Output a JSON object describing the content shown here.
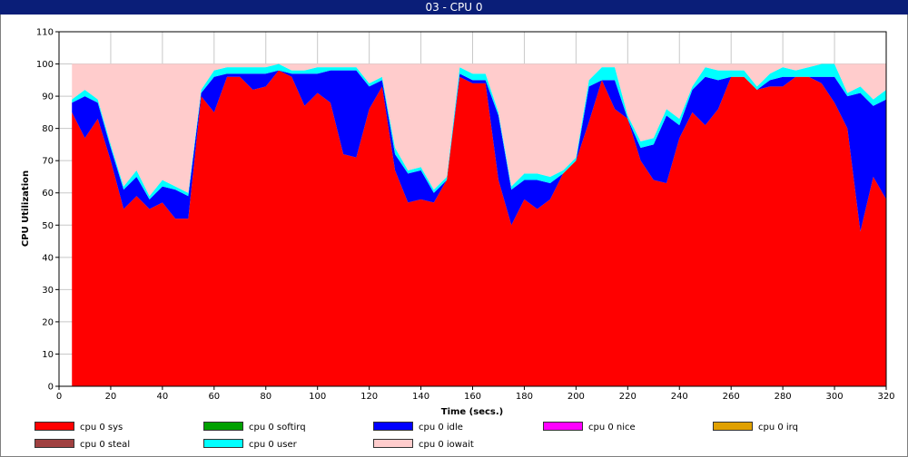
{
  "window": {
    "title": "03 - CPU 0"
  },
  "chart_data": {
    "type": "area",
    "title": "03 - CPU 0",
    "xlabel": "Time (secs.)",
    "ylabel": "CPU Utilization",
    "xlim": [
      0,
      320
    ],
    "ylim": [
      0,
      110
    ],
    "xticks": [
      0,
      20,
      40,
      60,
      80,
      100,
      120,
      140,
      160,
      180,
      200,
      220,
      240,
      260,
      280,
      300,
      320
    ],
    "yticks": [
      0,
      10,
      20,
      30,
      40,
      50,
      60,
      70,
      80,
      90,
      100,
      110
    ],
    "grid": true,
    "legend_position": "bottom",
    "stacked": true,
    "x": [
      5,
      10,
      15,
      20,
      25,
      30,
      35,
      40,
      45,
      50,
      55,
      60,
      65,
      70,
      75,
      80,
      85,
      90,
      95,
      100,
      105,
      110,
      115,
      120,
      125,
      130,
      135,
      140,
      145,
      150,
      155,
      160,
      165,
      170,
      175,
      180,
      185,
      190,
      195,
      200,
      205,
      210,
      215,
      220,
      225,
      230,
      235,
      240,
      245,
      250,
      255,
      260,
      265,
      270,
      275,
      280,
      285,
      290,
      295,
      300,
      305,
      310,
      315,
      320
    ],
    "series": [
      {
        "name": "cpu 0 sys",
        "color": "#ff0000",
        "values": [
          85,
          77,
          83,
          70,
          55,
          59,
          55,
          57,
          52,
          52,
          90,
          85,
          96,
          96,
          92,
          93,
          98,
          96,
          87,
          91,
          88,
          72,
          71,
          86,
          93,
          67,
          57,
          58,
          57,
          64,
          96,
          94,
          94,
          64,
          50,
          58,
          55,
          58,
          66,
          70,
          82,
          95,
          86,
          83,
          70,
          64,
          63,
          77,
          85,
          81,
          86,
          96,
          96,
          92,
          93,
          93,
          96,
          96,
          94,
          88,
          80,
          48,
          65,
          58
        ]
      },
      {
        "name": "cpu 0 softirq",
        "color": "#00a000",
        "values": [
          0,
          0,
          0,
          0,
          0,
          0,
          0,
          0,
          0,
          0,
          0,
          0,
          0,
          0,
          0,
          0,
          0,
          0,
          0,
          0,
          0,
          0,
          0,
          0,
          0,
          0,
          0,
          0,
          0,
          0,
          0,
          0,
          0,
          0,
          0,
          0,
          0,
          0,
          0,
          0,
          0,
          0,
          0,
          0,
          0,
          0,
          0,
          0,
          0,
          0,
          0,
          0,
          0,
          0,
          0,
          0,
          0,
          0,
          0,
          0,
          0,
          0,
          0,
          0
        ]
      },
      {
        "name": "cpu 0 idle",
        "color": "#0000ff",
        "values": [
          3,
          13,
          5,
          4,
          6,
          6,
          3,
          5,
          9,
          7,
          1,
          11,
          1,
          1,
          5,
          4,
          0,
          1,
          10,
          6,
          10,
          26,
          27,
          7,
          2,
          5,
          9,
          9,
          3,
          0,
          1,
          1,
          1,
          20,
          11,
          6,
          9,
          5,
          0,
          0,
          11,
          0,
          9,
          0,
          4,
          11,
          21,
          4,
          7,
          15,
          9,
          0,
          0,
          0,
          2,
          3,
          0,
          0,
          2,
          8,
          10,
          43,
          22,
          31
        ]
      },
      {
        "name": "cpu 0 nice",
        "color": "#ff00ff",
        "values": [
          0,
          0,
          0,
          0,
          0,
          0,
          0,
          0,
          0,
          0,
          0,
          0,
          0,
          0,
          0,
          0,
          0,
          0,
          0,
          0,
          0,
          0,
          0,
          0,
          0,
          0,
          0,
          0,
          0,
          0,
          0,
          0,
          0,
          0,
          0,
          0,
          0,
          0,
          0,
          0,
          0,
          0,
          0,
          0,
          0,
          0,
          0,
          0,
          0,
          0,
          0,
          0,
          0,
          0,
          0,
          0,
          0,
          0,
          0,
          0,
          0,
          0,
          0,
          0
        ]
      },
      {
        "name": "cpu 0 irq",
        "color": "#e0a000",
        "values": [
          0,
          0,
          0,
          0,
          0,
          0,
          0,
          0,
          0,
          0,
          0,
          0,
          0,
          0,
          0,
          0,
          0,
          0,
          0,
          0,
          0,
          0,
          0,
          0,
          0,
          0,
          0,
          0,
          0,
          0,
          0,
          0,
          0,
          0,
          0,
          0,
          0,
          0,
          0,
          0,
          0,
          0,
          0,
          0,
          0,
          0,
          0,
          0,
          0,
          0,
          0,
          0,
          0,
          0,
          0,
          0,
          0,
          0,
          0,
          0,
          0,
          0,
          0,
          0
        ]
      },
      {
        "name": "cpu 0 steal",
        "color": "#a04040",
        "values": [
          0,
          0,
          0,
          0,
          0,
          0,
          0,
          0,
          0,
          0,
          0,
          0,
          0,
          0,
          0,
          0,
          0,
          0,
          0,
          0,
          0,
          0,
          0,
          0,
          0,
          0,
          0,
          0,
          0,
          0,
          0,
          0,
          0,
          0,
          0,
          0,
          0,
          0,
          0,
          0,
          0,
          0,
          0,
          0,
          0,
          0,
          0,
          0,
          0,
          0,
          0,
          0,
          0,
          0,
          0,
          0,
          0,
          0,
          0,
          0,
          0,
          0,
          0,
          0
        ]
      },
      {
        "name": "cpu 0 user",
        "color": "#00ffff",
        "values": [
          1,
          2,
          1,
          1,
          1,
          2,
          1,
          2,
          1,
          1,
          1,
          2,
          2,
          2,
          2,
          2,
          2,
          1,
          1,
          2,
          1,
          1,
          1,
          1,
          1,
          2,
          1,
          1,
          1,
          1,
          2,
          2,
          2,
          1,
          1,
          2,
          2,
          2,
          1,
          1,
          2,
          4,
          4,
          1,
          2,
          2,
          2,
          2,
          1,
          3,
          3,
          2,
          2,
          1,
          2,
          3,
          2,
          3,
          4,
          4,
          1,
          2,
          2,
          3
        ]
      },
      {
        "name": "cpu 0 iowait",
        "color": "#ffcccc",
        "values": [
          11,
          8,
          11,
          25,
          38,
          33,
          41,
          36,
          38,
          40,
          8,
          2,
          1,
          1,
          1,
          1,
          0,
          2,
          2,
          1,
          1,
          1,
          1,
          6,
          4,
          26,
          33,
          32,
          39,
          35,
          1,
          3,
          3,
          15,
          38,
          34,
          34,
          35,
          33,
          29,
          5,
          1,
          1,
          16,
          24,
          23,
          14,
          17,
          7,
          1,
          2,
          2,
          2,
          7,
          3,
          1,
          2,
          1,
          0,
          0,
          9,
          7,
          11,
          8
        ]
      }
    ]
  },
  "legend": [
    {
      "label": "cpu 0 sys",
      "color": "#ff0000"
    },
    {
      "label": "cpu 0 softirq",
      "color": "#00a000"
    },
    {
      "label": "cpu 0 idle",
      "color": "#0000ff"
    },
    {
      "label": "cpu 0 nice",
      "color": "#ff00ff"
    },
    {
      "label": "cpu 0 irq",
      "color": "#e0a000"
    },
    {
      "label": "cpu 0 steal",
      "color": "#a04040"
    },
    {
      "label": "cpu 0 user",
      "color": "#00ffff"
    },
    {
      "label": "cpu 0 iowait",
      "color": "#ffcccc"
    }
  ]
}
